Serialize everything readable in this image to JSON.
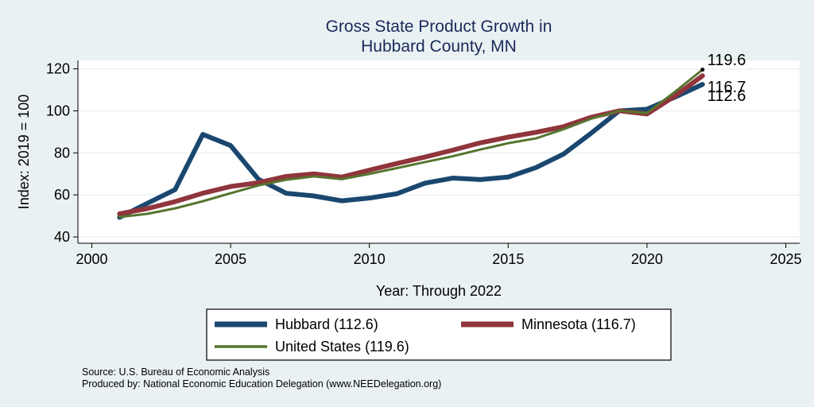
{
  "chart_data": {
    "type": "line",
    "title": [
      "Gross State Product Growth in",
      "Hubbard County, MN"
    ],
    "xlabel": "Year: Through 2022",
    "ylabel": "Index: 2019 = 100",
    "xlim": [
      1999.5,
      2025.5
    ],
    "ylim": [
      37,
      124
    ],
    "xticks": [
      2000,
      2005,
      2010,
      2015,
      2020,
      2025
    ],
    "yticks": [
      40,
      60,
      80,
      100,
      120
    ],
    "grid": true,
    "x": [
      2001,
      2002,
      2003,
      2004,
      2005,
      2006,
      2007,
      2008,
      2009,
      2010,
      2011,
      2012,
      2013,
      2014,
      2015,
      2016,
      2017,
      2018,
      2019,
      2020,
      2021,
      2022
    ],
    "series": [
      {
        "name": "Hubbard",
        "legend": "Hubbard  (112.6)",
        "color": "#1a476f",
        "values": [
          49.3,
          56.0,
          62.5,
          88.8,
          83.5,
          67.5,
          60.8,
          59.5,
          57.2,
          58.5,
          60.6,
          65.6,
          68.0,
          67.3,
          68.5,
          73.0,
          79.5,
          89.5,
          100.0,
          100.8,
          106.5,
          112.6
        ],
        "end_label": "112.6"
      },
      {
        "name": "Minnesota",
        "legend": "Minnesota (116.7)",
        "color": "#90353b",
        "values": [
          51.0,
          53.5,
          56.8,
          60.8,
          64.0,
          65.8,
          68.8,
          70.0,
          68.5,
          71.8,
          75.0,
          78.0,
          81.3,
          84.8,
          87.5,
          89.8,
          92.5,
          97.0,
          100.0,
          98.5,
          107.0,
          116.7
        ],
        "end_label": "116.7"
      },
      {
        "name": "United States",
        "legend": "United States (119.6)",
        "color": "#55752f",
        "values": [
          49.5,
          51.0,
          53.6,
          57.0,
          60.8,
          64.5,
          67.2,
          68.8,
          67.5,
          70.0,
          72.8,
          75.6,
          78.4,
          81.6,
          84.6,
          86.9,
          91.3,
          96.3,
          100.0,
          99.0,
          109.0,
          119.6
        ],
        "end_label": "119.6"
      }
    ],
    "source": "Source: U.S. Bureau of Economic Analysis",
    "produced_by": "Produced by: National Economic Education Delegation (www.NEEDelegation.org)"
  }
}
